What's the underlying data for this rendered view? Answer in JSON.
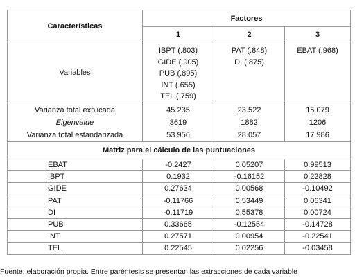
{
  "table": {
    "header": {
      "characteristics": "Características",
      "factors": "Factores",
      "factor_numbers": [
        "1",
        "2",
        "3"
      ]
    },
    "variables": {
      "label": "Variables",
      "columns": [
        [
          "IBPT (.803)",
          "GIDE (.905)",
          "PUB (.895)",
          "INT (.655)",
          "TEL (.759)"
        ],
        [
          "PAT (.848)",
          "DI (.875)"
        ],
        [
          "EBAT (.968)"
        ]
      ]
    },
    "variance_rows": [
      [
        "Varianza total explicada",
        "45.235",
        "23.522",
        "15.079"
      ],
      [
        "Eigenvalue",
        "3619",
        "1882",
        "1206"
      ],
      [
        "Varianza total estandarizada",
        "53.956",
        "28.057",
        "17.986"
      ]
    ],
    "matrix_title": "Matriz para el cálculo de las puntuaciones",
    "matrix_rows": [
      [
        "EBAT",
        "-0.2427",
        "0.05207",
        "0.99513"
      ],
      [
        "IBPT",
        "0.1932",
        "-0.16152",
        "0.22828"
      ],
      [
        "GIDE",
        "0.27634",
        "0.00568",
        "-0.10492"
      ],
      [
        "PAT",
        "-0.11766",
        "0.53449",
        "0.06341"
      ],
      [
        "DI",
        "-0.11719",
        "0.55378",
        "0.00724"
      ],
      [
        "PUB",
        "0.33665",
        "-0.12554",
        "-0.14728"
      ],
      [
        "INT",
        "0.27571",
        "0.00954",
        "-0.22541"
      ],
      [
        "TEL",
        "0.22545",
        "0.02256",
        "-0.03458"
      ]
    ]
  },
  "footnote": "Fuente: elaboración propia. Entre paréntesis se presentan las extracciones de cada variable"
}
